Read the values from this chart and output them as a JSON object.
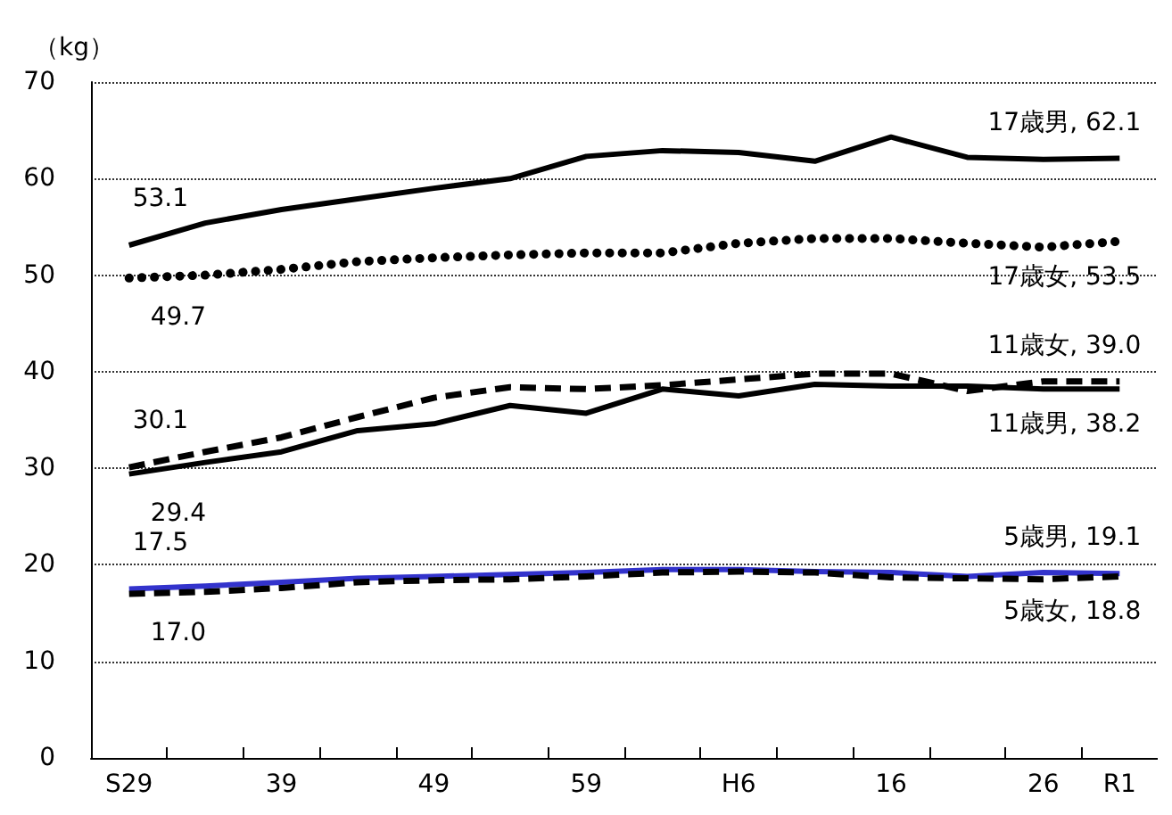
{
  "chart_data": {
    "type": "line",
    "ylabel": "（kg）",
    "categories": [
      "S29",
      null,
      "39",
      null,
      "49",
      null,
      "59",
      null,
      "H6",
      null,
      "16",
      null,
      "26",
      "R1"
    ],
    "ylim": [
      0,
      70
    ],
    "yticks": [
      0,
      10,
      20,
      30,
      40,
      50,
      60,
      70
    ],
    "grid": "y",
    "marker": "none",
    "series": [
      {
        "color": "#000000",
        "line_style": "solid",
        "values": [
          53.1,
          55.4,
          56.8,
          57.9,
          59.0,
          60.0,
          62.3,
          62.9,
          62.7,
          61.8,
          64.3,
          62.2,
          62.0,
          62.1
        ],
        "value_labels": [
          "53.1",
          null,
          null,
          null,
          null,
          null,
          null,
          null,
          null,
          null,
          null,
          null,
          null,
          "17歳男, 62.1"
        ]
      },
      {
        "color": "#000000",
        "line_style": "dotted",
        "values": [
          49.7,
          50.0,
          50.6,
          51.4,
          51.8,
          52.1,
          52.3,
          52.3,
          53.3,
          53.8,
          53.8,
          53.3,
          52.9,
          53.5
        ],
        "value_labels": [
          "49.7",
          null,
          null,
          null,
          null,
          null,
          null,
          null,
          null,
          null,
          null,
          null,
          null,
          "17歳女, 53.5"
        ]
      },
      {
        "color": "#000000",
        "line_style": "dashed",
        "values": [
          30.1,
          31.7,
          33.2,
          35.3,
          37.3,
          38.4,
          38.2,
          38.6,
          39.2,
          39.8,
          39.8,
          38.0,
          39.0,
          39.0
        ],
        "value_labels": [
          "30.1",
          null,
          null,
          null,
          null,
          null,
          null,
          null,
          null,
          null,
          null,
          null,
          null,
          "11歳女, 39.0"
        ]
      },
      {
        "color": "#000000",
        "line_style": "solid",
        "values": [
          29.4,
          30.6,
          31.7,
          33.9,
          34.6,
          36.5,
          35.7,
          38.2,
          37.5,
          38.7,
          38.5,
          38.5,
          38.2,
          38.2
        ],
        "value_labels": [
          "29.4",
          null,
          null,
          null,
          null,
          null,
          null,
          null,
          null,
          null,
          null,
          null,
          null,
          "11歳男, 38.2"
        ]
      },
      {
        "color": "#3333cc",
        "line_style": "solid",
        "values": [
          17.5,
          17.8,
          18.2,
          18.6,
          18.8,
          19.0,
          19.2,
          19.5,
          19.5,
          19.3,
          19.2,
          18.8,
          19.2,
          19.1
        ],
        "value_labels": [
          "17.5",
          null,
          null,
          null,
          null,
          null,
          null,
          null,
          null,
          null,
          null,
          null,
          null,
          "5歳男, 19.1"
        ]
      },
      {
        "color": "#000000",
        "line_style": "dashed",
        "values": [
          17.0,
          17.2,
          17.6,
          18.2,
          18.4,
          18.5,
          18.8,
          19.2,
          19.3,
          19.2,
          18.7,
          18.6,
          18.5,
          18.8
        ],
        "value_labels": [
          "17.0",
          null,
          null,
          null,
          null,
          null,
          null,
          null,
          null,
          null,
          null,
          null,
          null,
          "5歳女, 18.8"
        ]
      }
    ]
  }
}
